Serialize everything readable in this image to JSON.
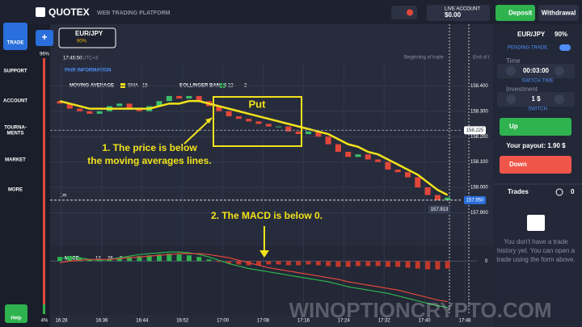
{
  "header": {
    "logo": "QUOTEX",
    "subtitle": "WEB TRADING PLATFORM",
    "account_label": "LIVE ACCOUNT",
    "balance": "$0.00",
    "deposit": "Deposit",
    "withdrawal": "Withdrawal"
  },
  "sidebar": {
    "items": [
      "TRADE",
      "SUPPORT",
      "ACCOUNT",
      "TOURNA-",
      "MENTS",
      "MARKET",
      "MORE"
    ],
    "help": "Help",
    "top_percent": "96%",
    "bottom_percent": "4%"
  },
  "asset": {
    "name": "EUR/JPY",
    "payout": "90%"
  },
  "chart": {
    "clock": "17:45:50",
    "timezone": "UTC+3",
    "pair_info": "PAIR INFORMATION",
    "indicator_ma": "MOVING AVERAGE",
    "ma_type": "SMA",
    "ma_period": "15",
    "indicator_bb": "BOLLINGER BANDS",
    "bb_period": "22",
    "bb_dev": "2",
    "begin_label": "Beginning of trade",
    "end_label": "End of t",
    "timeframe": "1m",
    "ylim": [
      157.8,
      158.49
    ],
    "yticks": [
      {
        "value": 158.4,
        "label": "158.400"
      },
      {
        "value": 158.3,
        "label": "158.300"
      },
      {
        "value": 158.2,
        "label": "158.200"
      },
      {
        "value": 158.1,
        "label": "158.100"
      },
      {
        "value": 158.0,
        "label": "158.000"
      },
      {
        "value": 157.9,
        "label": "157.900"
      }
    ],
    "price_tags": [
      {
        "value": 158.225,
        "label": "158.225"
      },
      {
        "value": 157.95,
        "label": "157.950"
      },
      {
        "value": 157.913,
        "label": "157.913"
      }
    ],
    "time_labels": [
      "16:28",
      "16:36",
      "16:44",
      "16:52",
      "17:00",
      "17:08",
      "17:16",
      "17:24",
      "17:32",
      "17:40",
      "17:48"
    ],
    "open": [
      158.34,
      158.33,
      158.31,
      158.3,
      158.29,
      158.3,
      158.32,
      158.33,
      158.31,
      158.3,
      158.32,
      158.34,
      158.36,
      158.35,
      158.36,
      158.34,
      158.32,
      158.3,
      158.28,
      158.27,
      158.26,
      158.25,
      158.24,
      158.24,
      158.22,
      158.21,
      158.22,
      158.2,
      158.17,
      158.14,
      158.12,
      158.13,
      158.11,
      158.1,
      158.07,
      158.06,
      158.04,
      158.0,
      157.97,
      157.95
    ],
    "close": [
      158.33,
      158.31,
      158.3,
      158.29,
      158.3,
      158.32,
      158.33,
      158.31,
      158.3,
      158.32,
      158.34,
      158.36,
      158.35,
      158.36,
      158.34,
      158.32,
      158.3,
      158.28,
      158.27,
      158.26,
      158.25,
      158.24,
      158.24,
      158.22,
      158.21,
      158.22,
      158.2,
      158.17,
      158.14,
      158.12,
      158.13,
      158.11,
      158.1,
      158.07,
      158.06,
      158.04,
      158.0,
      157.97,
      157.95,
      157.96
    ],
    "ma": [
      158.34,
      158.33,
      158.32,
      158.31,
      158.31,
      158.31,
      158.31,
      158.31,
      158.31,
      158.31,
      158.32,
      158.33,
      158.33,
      158.34,
      158.34,
      158.33,
      158.32,
      158.31,
      158.3,
      158.29,
      158.28,
      158.27,
      158.26,
      158.25,
      158.24,
      158.23,
      158.22,
      158.21,
      158.19,
      158.17,
      158.16,
      158.14,
      158.13,
      158.11,
      158.09,
      158.07,
      158.05,
      158.02,
      157.99,
      157.97
    ],
    "ma_color": "#f2e21b",
    "macd_label": "MACD",
    "macd_fast": "12",
    "macd_slow": "26",
    "macd_signal_period": "9",
    "macd_ylim": [
      -0.065,
      0.015
    ],
    "macd_yticks": [
      0
    ],
    "macd_hist": [
      0.005,
      0.006,
      0.004,
      0.002,
      0.001,
      0.002,
      0.004,
      0.005,
      0.006,
      0.007,
      0.008,
      0.009,
      0.008,
      0.007,
      0.005,
      0.002,
      -0.001,
      -0.003,
      -0.004,
      -0.005,
      -0.005,
      -0.004,
      -0.004,
      -0.005,
      -0.005,
      -0.004,
      -0.005,
      -0.006,
      -0.007,
      -0.007,
      -0.006,
      -0.006,
      -0.006,
      -0.007,
      -0.007,
      -0.008,
      -0.009,
      -0.01,
      -0.01,
      -0.009
    ],
    "macd_line": [
      0.003,
      0.005,
      0.004,
      0.002,
      0.001,
      0.002,
      0.004,
      0.006,
      0.008,
      0.009,
      0.01,
      0.011,
      0.011,
      0.01,
      0.008,
      0.005,
      0.001,
      -0.003,
      -0.006,
      -0.009,
      -0.011,
      -0.013,
      -0.015,
      -0.017,
      -0.019,
      -0.021,
      -0.023,
      -0.025,
      -0.028,
      -0.031,
      -0.033,
      -0.035,
      -0.037,
      -0.039,
      -0.042,
      -0.045,
      -0.048,
      -0.051,
      -0.054,
      -0.056
    ],
    "signal_line": [
      -0.002,
      0.0,
      0.001,
      0.002,
      0.002,
      0.002,
      0.003,
      0.004,
      0.005,
      0.006,
      0.007,
      0.008,
      0.009,
      0.009,
      0.009,
      0.008,
      0.006,
      0.004,
      0.001,
      -0.002,
      -0.005,
      -0.008,
      -0.01,
      -0.012,
      -0.014,
      -0.016,
      -0.018,
      -0.02,
      -0.022,
      -0.025,
      -0.027,
      -0.029,
      -0.031,
      -0.033,
      -0.035,
      -0.038,
      -0.041,
      -0.044,
      -0.047,
      -0.049
    ]
  },
  "annotations": {
    "box": "Put",
    "note1": [
      "1. The price is below",
      "the moving averages lines."
    ],
    "note2": "2. The MACD is below 0.",
    "watermark": "WINOPTIONCRYPTO.COM"
  },
  "panel": {
    "pending": "PENDING TRADE",
    "time_label": "Time",
    "time_value": "00:03:00",
    "switch_time": "SWITCH TIME",
    "investment_label": "Investment",
    "investment_value": "1 $",
    "switch": "SWITCH",
    "up": "Up",
    "payout": "Your payout: 1.90 $",
    "down": "Down",
    "trades": "Trades",
    "trades_count": "0",
    "empty": [
      "You don't have a trade",
      "history yet. You can open a",
      "trade using the form above."
    ]
  }
}
